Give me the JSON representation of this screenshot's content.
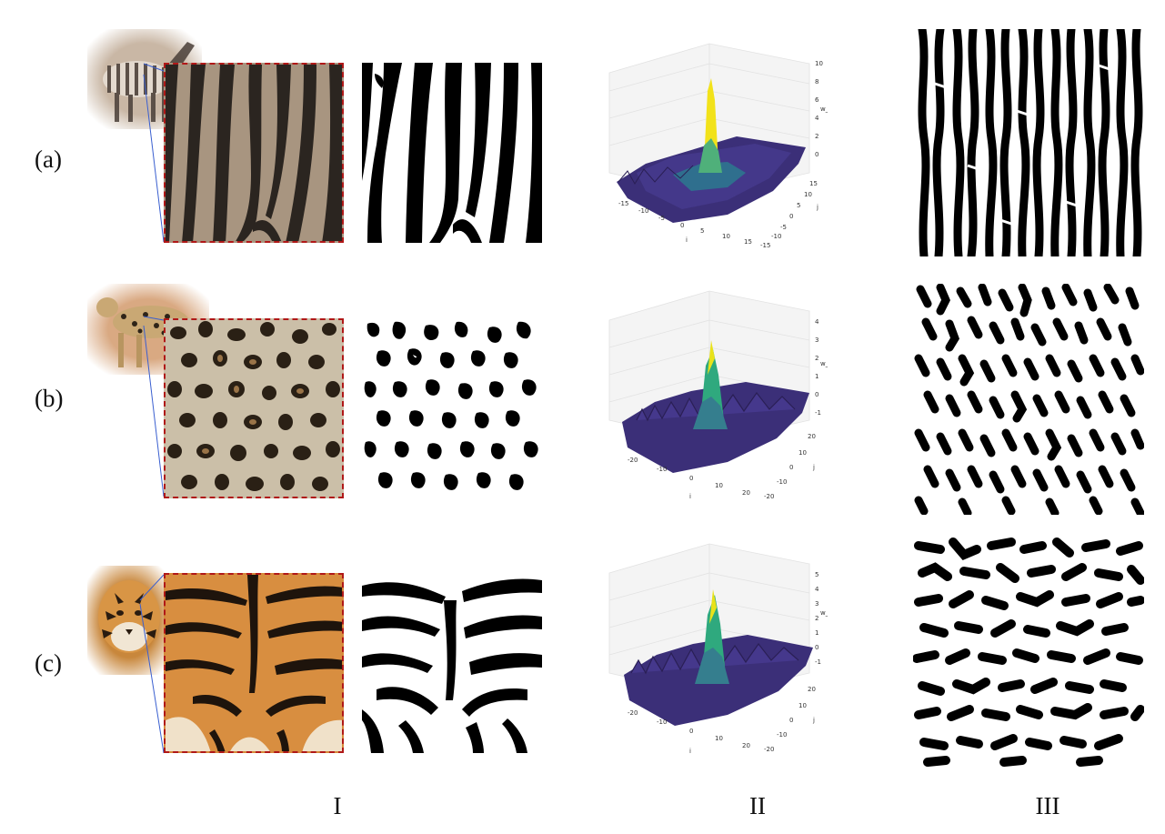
{
  "rows": [
    {
      "label": "(a)",
      "animal_icon": "zebra-photo",
      "texture": "stripes",
      "plot": {
        "z_ticks": [
          "10",
          "8",
          "6",
          "4",
          "2",
          "0"
        ],
        "x_ticks": [
          "-15",
          "-10",
          "-5",
          "0",
          "5",
          "10",
          "15"
        ],
        "y_ticks": [
          "15",
          "10",
          "5",
          "0",
          "-5",
          "-10",
          "-15"
        ],
        "z_label": "w_ij",
        "x_label": "i",
        "y_label": "j"
      }
    },
    {
      "label": "(b)",
      "animal_icon": "leopard-photo",
      "texture": "spots",
      "plot": {
        "z_ticks": [
          "4",
          "3",
          "2",
          "1",
          "0",
          "-1"
        ],
        "x_ticks": [
          "-20",
          "-10",
          "0",
          "10",
          "20"
        ],
        "y_ticks": [
          "20",
          "10",
          "0",
          "-10",
          "-20"
        ],
        "z_label": "w_ij",
        "x_label": "i",
        "y_label": "j"
      }
    },
    {
      "label": "(c)",
      "animal_icon": "tiger-photo",
      "texture": "tiger-stripes",
      "plot": {
        "z_ticks": [
          "5",
          "4",
          "3",
          "2",
          "1",
          "0",
          "-1"
        ],
        "x_ticks": [
          "-20",
          "-10",
          "0",
          "10",
          "20"
        ],
        "y_ticks": [
          "20",
          "10",
          "0",
          "-10",
          "-20"
        ],
        "z_label": "w_ij",
        "x_label": "i",
        "y_label": "j"
      }
    }
  ],
  "columns": [
    "I",
    "II",
    "III"
  ],
  "colors": {
    "crop_border": "#b01818",
    "connector": "#3a5fd0",
    "surface_low": "#3b2a6e",
    "surface_mid": "#2a8c8c",
    "surface_peak": "#f2e21a"
  }
}
